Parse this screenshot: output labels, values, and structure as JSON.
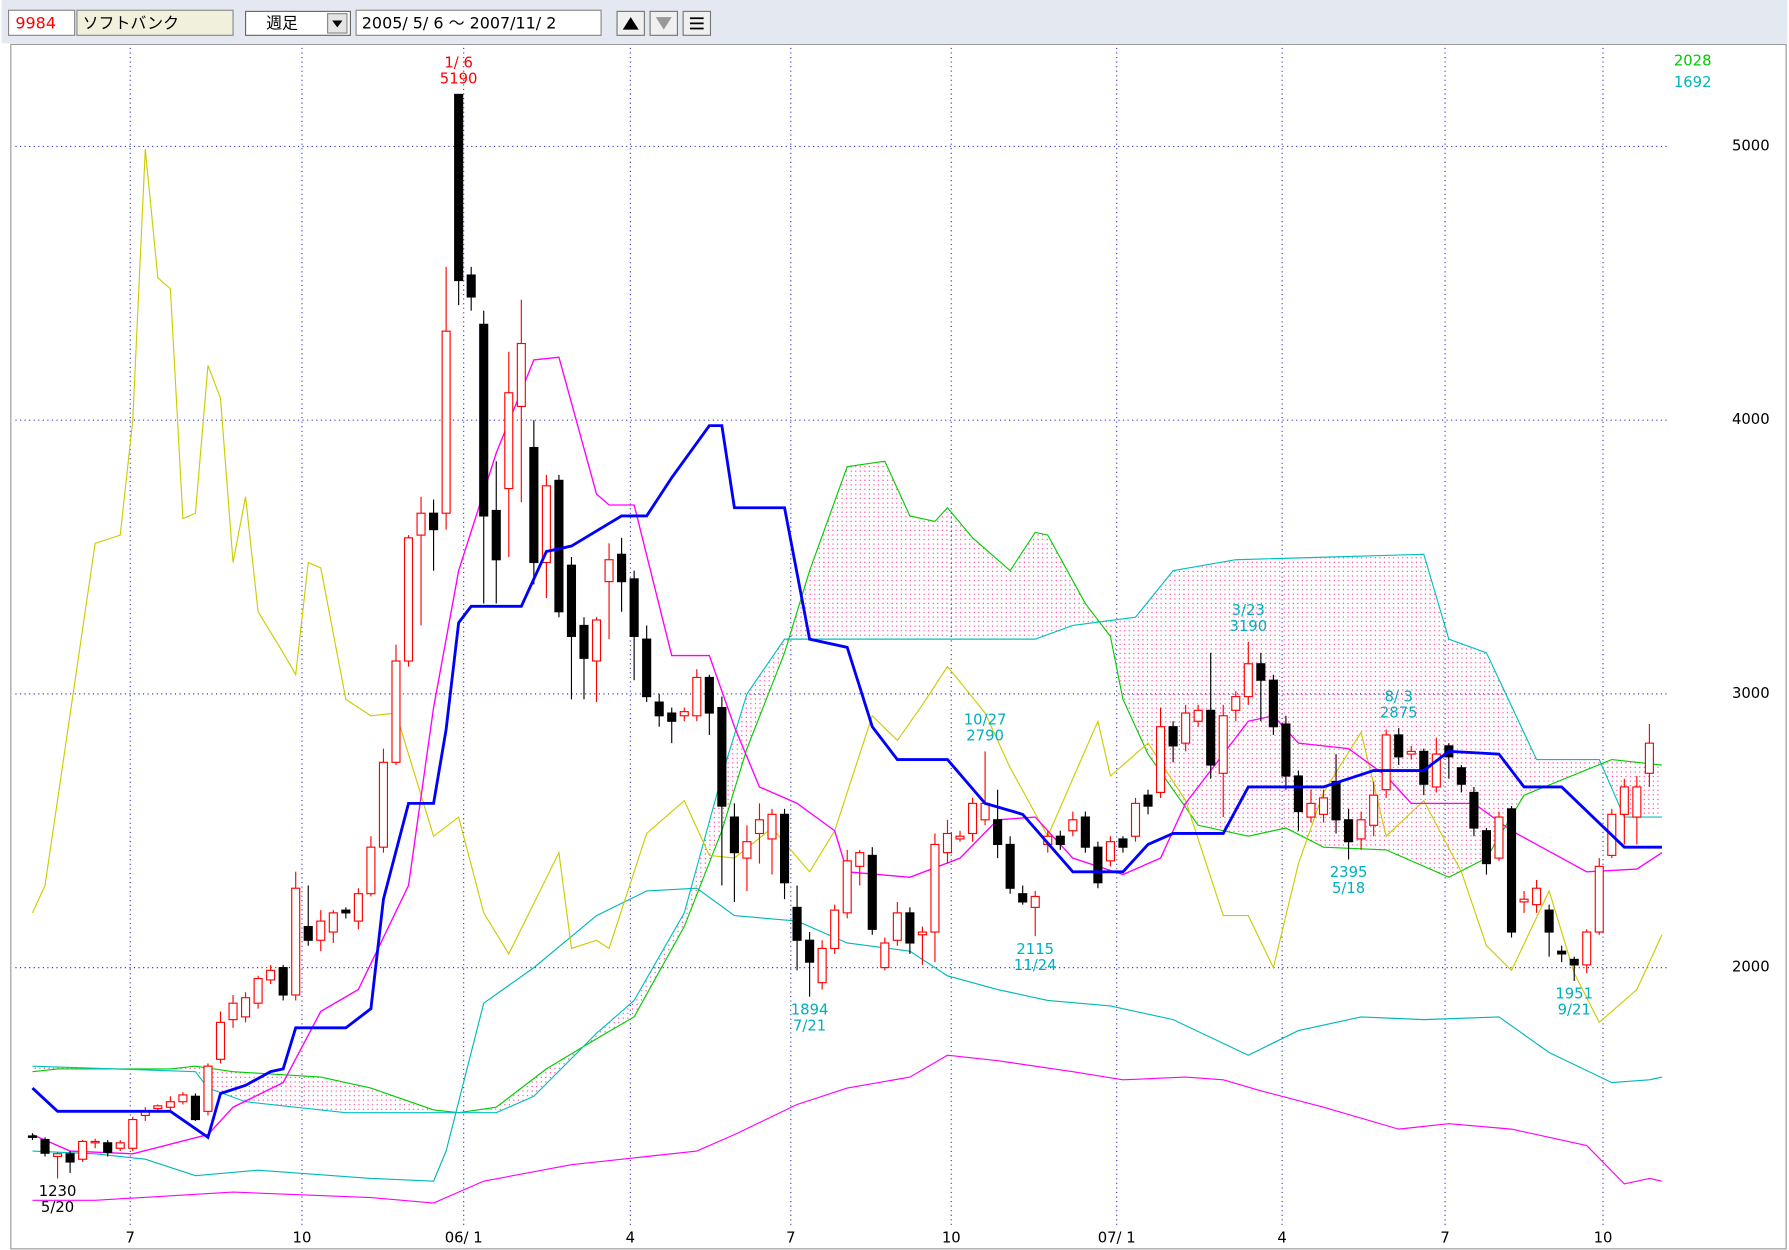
{
  "toolbar": {
    "code": "9984",
    "name": "ソフトバンク",
    "period": "週足",
    "range": "2005/ 5/ 6 〜 2007/11/ 2"
  },
  "chart_data": {
    "type": "candlestick",
    "up_color": "#ff0000",
    "down_color": "#000000",
    "ylim": [
      1060,
      5360
    ],
    "yticks": [
      2000,
      3000,
      4000,
      5000
    ],
    "grid": true,
    "grid_color": "#3333cc",
    "xticks": [
      {
        "value": 7.8,
        "label": "7"
      },
      {
        "value": 21.5,
        "label": "10"
      },
      {
        "value": 34.4,
        "label": "06/ 1"
      },
      {
        "value": 47.7,
        "label": "4"
      },
      {
        "value": 60.5,
        "label": "7"
      },
      {
        "value": 73.3,
        "label": "10"
      },
      {
        "value": 86.5,
        "label": "07/ 1"
      },
      {
        "value": 99.7,
        "label": "4"
      },
      {
        "value": 112.7,
        "label": "7"
      },
      {
        "value": 125.3,
        "label": "10"
      }
    ],
    "candles": {
      "open": [
        1385,
        1372,
        1310,
        1320,
        1300,
        1360,
        1360,
        1340,
        1340,
        1460,
        1485,
        1490,
        1510,
        1530,
        1475,
        1665,
        1810,
        1820,
        1870,
        1955,
        2000,
        1900,
        2150,
        2100,
        2130,
        2210,
        2170,
        2270,
        2440,
        2750,
        3120,
        3580,
        3660,
        3660,
        5190,
        4530,
        4350,
        3670,
        3750,
        4050,
        3900,
        3480,
        3780,
        3470,
        3250,
        3120,
        3410,
        3510,
        3420,
        3200,
        2970,
        2930,
        2920,
        2920,
        3060,
        2950,
        2550,
        2400,
        2490,
        2470,
        2560,
        2220,
        2100,
        1945,
        2070,
        2200,
        2370,
        2410,
        2000,
        2100,
        2200,
        2120,
        2130,
        2420,
        2470,
        2490,
        2540,
        2540,
        2450,
        2270,
        2220,
        2450,
        2480,
        2500,
        2550,
        2440,
        2390,
        2470,
        2480,
        2630,
        2640,
        2880,
        2820,
        2900,
        2940,
        2710,
        2940,
        2990,
        3110,
        3050,
        2890,
        2700,
        2550,
        2560,
        2680,
        2540,
        2470,
        2520,
        2650,
        2850,
        2780,
        2790,
        2660,
        2810,
        2730,
        2640,
        2500,
        2400,
        2580,
        2240,
        2230,
        2210,
        2060,
        2030,
        2010,
        2130,
        2410,
        2560,
        2550,
        2710
      ],
      "high": [
        1395,
        1380,
        1325,
        1330,
        1370,
        1375,
        1370,
        1370,
        1455,
        1490,
        1500,
        1530,
        1545,
        1540,
        1650,
        1840,
        1900,
        1910,
        1970,
        2010,
        2010,
        2350,
        2300,
        2210,
        2210,
        2220,
        2290,
        2480,
        2800,
        3180,
        3580,
        3720,
        3710,
        4560,
        5190,
        4560,
        4400,
        3850,
        4250,
        4440,
        4000,
        3800,
        3800,
        3500,
        3280,
        3280,
        3550,
        3570,
        3450,
        3250,
        3000,
        2950,
        2950,
        3090,
        3070,
        2990,
        2600,
        2520,
        2600,
        2580,
        2580,
        2300,
        2130,
        2100,
        2230,
        2430,
        2430,
        2440,
        2110,
        2240,
        2220,
        2150,
        2490,
        2540,
        2500,
        2620,
        2790,
        2650,
        2480,
        2300,
        2280,
        2500,
        2500,
        2570,
        2570,
        2460,
        2480,
        2480,
        2620,
        2650,
        2950,
        2900,
        2960,
        2960,
        3150,
        2960,
        3010,
        3190,
        3150,
        3070,
        2920,
        2720,
        2650,
        2650,
        2780,
        2580,
        2570,
        2680,
        2870,
        2875,
        2810,
        2800,
        2840,
        2820,
        2740,
        2660,
        2510,
        2570,
        2590,
        2280,
        2320,
        2230,
        2080,
        2040,
        2140,
        2400,
        2580,
        2690,
        2700,
        2890
      ],
      "low": [
        1370,
        1310,
        1230,
        1250,
        1290,
        1340,
        1310,
        1330,
        1330,
        1440,
        1470,
        1480,
        1500,
        1440,
        1460,
        1650,
        1780,
        1800,
        1850,
        1940,
        1880,
        1880,
        2080,
        2060,
        2090,
        2180,
        2140,
        2260,
        2420,
        2740,
        3100,
        3250,
        3450,
        3600,
        4420,
        4400,
        3330,
        3330,
        3500,
        3700,
        3400,
        3350,
        3280,
        2980,
        2980,
        2970,
        3200,
        3300,
        3050,
        2970,
        2880,
        2820,
        2900,
        2900,
        2850,
        2300,
        2240,
        2280,
        2380,
        2340,
        2250,
        1990,
        1894,
        1920,
        2050,
        2180,
        2300,
        2120,
        1990,
        2080,
        2050,
        2010,
        2020,
        2380,
        2460,
        2460,
        2520,
        2400,
        2270,
        2230,
        2115,
        2420,
        2430,
        2480,
        2420,
        2290,
        2370,
        2420,
        2460,
        2560,
        2620,
        2750,
        2790,
        2880,
        2690,
        2550,
        2900,
        2960,
        2900,
        2850,
        2650,
        2500,
        2530,
        2530,
        2490,
        2395,
        2430,
        2480,
        2620,
        2740,
        2760,
        2630,
        2640,
        2690,
        2640,
        2480,
        2340,
        2390,
        2110,
        2200,
        2200,
        2040,
        2020,
        1951,
        1980,
        2120,
        2400,
        2450,
        2450,
        2660
      ],
      "close": [
        1380,
        1322,
        1320,
        1290,
        1365,
        1365,
        1325,
        1360,
        1445,
        1475,
        1495,
        1510,
        1535,
        1445,
        1640,
        1800,
        1870,
        1890,
        1960,
        1990,
        1900,
        2290,
        2100,
        2170,
        2200,
        2200,
        2270,
        2440,
        2750,
        3120,
        3570,
        3660,
        3600,
        4325,
        4510,
        4450,
        3650,
        3490,
        4100,
        4280,
        3480,
        3760,
        3300,
        3210,
        3130,
        3270,
        3490,
        3410,
        3210,
        2990,
        2920,
        2900,
        2935,
        3060,
        2930,
        2590,
        2420,
        2460,
        2540,
        2560,
        2310,
        2100,
        2020,
        2070,
        2210,
        2390,
        2420,
        2140,
        2090,
        2200,
        2090,
        2130,
        2450,
        2490,
        2480,
        2600,
        2600,
        2450,
        2290,
        2240,
        2260,
        2480,
        2450,
        2540,
        2440,
        2310,
        2460,
        2440,
        2600,
        2590,
        2880,
        2810,
        2930,
        2940,
        2740,
        2920,
        2990,
        3110,
        3050,
        2880,
        2700,
        2570,
        2600,
        2620,
        2540,
        2460,
        2540,
        2630,
        2850,
        2770,
        2790,
        2670,
        2780,
        2770,
        2670,
        2510,
        2380,
        2550,
        2130,
        2250,
        2290,
        2130,
        2050,
        2010,
        2130,
        2370,
        2560,
        2660,
        2660,
        2820
      ]
    },
    "cloud_color": "#ff3399",
    "lines": {
      "senkou_b": {
        "color": "#00cc00",
        "width": 1,
        "x": [
          0,
          2,
          11,
          13,
          16,
          23,
          27,
          32,
          34,
          37,
          41,
          45,
          48,
          52,
          55,
          57,
          60,
          62,
          65,
          68,
          70,
          72,
          73,
          75,
          78,
          80,
          81,
          84,
          86,
          87,
          89,
          93,
          97,
          100,
          103,
          108,
          113,
          116,
          119,
          126,
          130
        ],
        "values": [
          1620,
          1630,
          1630,
          1640,
          1620,
          1600,
          1560,
          1480,
          1470,
          1490,
          1630,
          1740,
          1820,
          2150,
          2500,
          2800,
          3150,
          3450,
          3830,
          3850,
          3650,
          3630,
          3680,
          3570,
          3450,
          3590,
          3580,
          3330,
          3210,
          2980,
          2780,
          2520,
          2480,
          2510,
          2440,
          2430,
          2330,
          2400,
          2630,
          2760,
          2740
        ]
      },
      "senkou_a": {
        "color": "#00c0c0",
        "width": 1,
        "x": [
          0,
          13,
          14,
          17,
          25,
          37,
          40,
          45,
          48,
          52,
          55,
          57,
          60,
          80,
          83,
          88,
          91,
          96,
          111,
          113,
          116,
          120,
          125,
          127,
          130
        ],
        "values": [
          1640,
          1620,
          1560,
          1510,
          1470,
          1470,
          1530,
          1760,
          1880,
          2200,
          2700,
          3000,
          3200,
          3200,
          3250,
          3280,
          3450,
          3490,
          3510,
          3200,
          3150,
          2760,
          2760,
          2550,
          2550
        ]
      },
      "lower_cyan": {
        "color": "#00b8b8",
        "width": 1,
        "x": [
          0,
          5,
          9,
          13,
          18,
          27,
          32,
          33,
          36,
          40,
          45,
          49,
          53,
          56,
          61,
          65,
          70,
          73,
          77,
          81,
          86,
          91,
          97,
          101,
          106,
          111,
          117,
          121,
          126,
          129,
          130
        ],
        "values": [
          1330,
          1320,
          1300,
          1240,
          1260,
          1230,
          1220,
          1330,
          1870,
          2000,
          2190,
          2280,
          2290,
          2190,
          2170,
          2090,
          2060,
          1970,
          1920,
          1880,
          1860,
          1810,
          1680,
          1770,
          1820,
          1810,
          1820,
          1690,
          1580,
          1590,
          1600
        ]
      },
      "lower_magenta": {
        "color": "#ff00ff",
        "width": 1,
        "x": [
          0,
          5,
          16,
          27,
          32,
          36,
          43,
          49,
          53,
          56,
          61,
          65,
          70,
          73,
          77,
          83,
          87,
          92,
          95,
          98,
          103,
          109,
          113,
          118,
          124,
          127,
          129,
          130
        ],
        "values": [
          1150,
          1150,
          1180,
          1160,
          1140,
          1220,
          1280,
          1310,
          1330,
          1390,
          1500,
          1560,
          1600,
          1680,
          1660,
          1620,
          1590,
          1600,
          1590,
          1550,
          1490,
          1410,
          1430,
          1410,
          1350,
          1210,
          1230,
          1220
        ]
      },
      "chikou": {
        "color": "#cccc00",
        "width": 1,
        "x": [
          0,
          1,
          5,
          7,
          8,
          9,
          10,
          11,
          12,
          13,
          14,
          15,
          16,
          17,
          18,
          20,
          21,
          22,
          23,
          25,
          27,
          29,
          32,
          34,
          36,
          38,
          42,
          43,
          45,
          46,
          49,
          52,
          54,
          56,
          59,
          62,
          64,
          67,
          69,
          71,
          73,
          76,
          78,
          81,
          85,
          86,
          89,
          92,
          95,
          97,
          99,
          101,
          103,
          106,
          108,
          111,
          114,
          116,
          118,
          121,
          123,
          125,
          128,
          130
        ],
        "values": [
          2200,
          2300,
          3550,
          3580,
          4000,
          4990,
          4520,
          4480,
          3640,
          3660,
          4200,
          4080,
          3480,
          3720,
          3300,
          3150,
          3070,
          3480,
          3460,
          2980,
          2920,
          2930,
          2480,
          2550,
          2200,
          2050,
          2420,
          2070,
          2100,
          2070,
          2490,
          2610,
          2410,
          2400,
          2510,
          2350,
          2500,
          2920,
          2830,
          2960,
          3100,
          2930,
          2730,
          2480,
          2900,
          2700,
          2820,
          2610,
          2190,
          2190,
          2000,
          2380,
          2640,
          2860,
          2480,
          2610,
          2350,
          2080,
          1990,
          2280,
          1980,
          1800,
          1920,
          2120
        ]
      },
      "tenkan": {
        "color": "#ff00ff",
        "width": 1.2,
        "x": [
          0,
          3,
          8,
          14,
          16,
          20,
          23,
          26,
          30,
          32,
          34,
          37,
          40,
          42,
          45,
          46,
          48,
          51,
          54,
          56,
          58,
          61,
          64,
          65,
          70,
          74,
          77,
          80,
          83,
          87,
          90,
          92,
          97,
          99,
          101,
          105,
          108,
          110,
          115,
          118,
          120,
          124,
          128,
          130
        ],
        "values": [
          1390,
          1330,
          1320,
          1390,
          1490,
          1580,
          1840,
          1920,
          2300,
          2950,
          3450,
          3880,
          4220,
          4230,
          3730,
          3690,
          3690,
          3140,
          3140,
          2880,
          2660,
          2600,
          2500,
          2350,
          2330,
          2400,
          2540,
          2550,
          2400,
          2340,
          2400,
          2600,
          2900,
          2920,
          2820,
          2800,
          2700,
          2600,
          2600,
          2500,
          2450,
          2350,
          2360,
          2420
        ]
      },
      "kijun": {
        "color": "#0000ff",
        "width": 2.5,
        "x": [
          0,
          2,
          11,
          14,
          15,
          17,
          19,
          20,
          21,
          25,
          27,
          28,
          30,
          32,
          33,
          34,
          35,
          39,
          41,
          42,
          43,
          47,
          49,
          51,
          54,
          55,
          56,
          60,
          62,
          65,
          67,
          69,
          73,
          76,
          79,
          83,
          87,
          89,
          91,
          95,
          97,
          103,
          107,
          111,
          113,
          117,
          119,
          122,
          127,
          130
        ],
        "values": [
          1560,
          1475,
          1475,
          1380,
          1540,
          1570,
          1620,
          1630,
          1780,
          1780,
          1850,
          2250,
          2600,
          2600,
          2870,
          3260,
          3320,
          3320,
          3520,
          3530,
          3540,
          3650,
          3650,
          3790,
          3980,
          3980,
          3680,
          3680,
          3200,
          3170,
          2880,
          2760,
          2760,
          2600,
          2560,
          2350,
          2350,
          2450,
          2490,
          2490,
          2660,
          2660,
          2720,
          2720,
          2790,
          2780,
          2660,
          2660,
          2440,
          2440
        ]
      }
    },
    "annotations": [
      {
        "date": "1/ 6",
        "value": 5190,
        "color": "#ff0000"
      },
      {
        "date": "5/20",
        "value": 1230,
        "color": "#000000"
      },
      {
        "date": "7/21",
        "value": 1894,
        "color": "#00b0c0"
      },
      {
        "date": "10/27",
        "value": 2790,
        "color": "#00b0c0"
      },
      {
        "date": "11/24",
        "value": 2115,
        "color": "#00b0c0"
      },
      {
        "date": "3/23",
        "value": 3190,
        "color": "#00b0c0"
      },
      {
        "date": "5/18",
        "value": 2395,
        "color": "#00b0c0"
      },
      {
        "date": "8/ 3",
        "value": 2875,
        "color": "#00b0c0"
      },
      {
        "date": "9/21",
        "value": 1951,
        "color": "#00b0c0"
      }
    ],
    "side_labels": [
      {
        "value": 2028,
        "color": "#00cc00"
      },
      {
        "value": 1692,
        "color": "#00b8b8"
      }
    ]
  }
}
